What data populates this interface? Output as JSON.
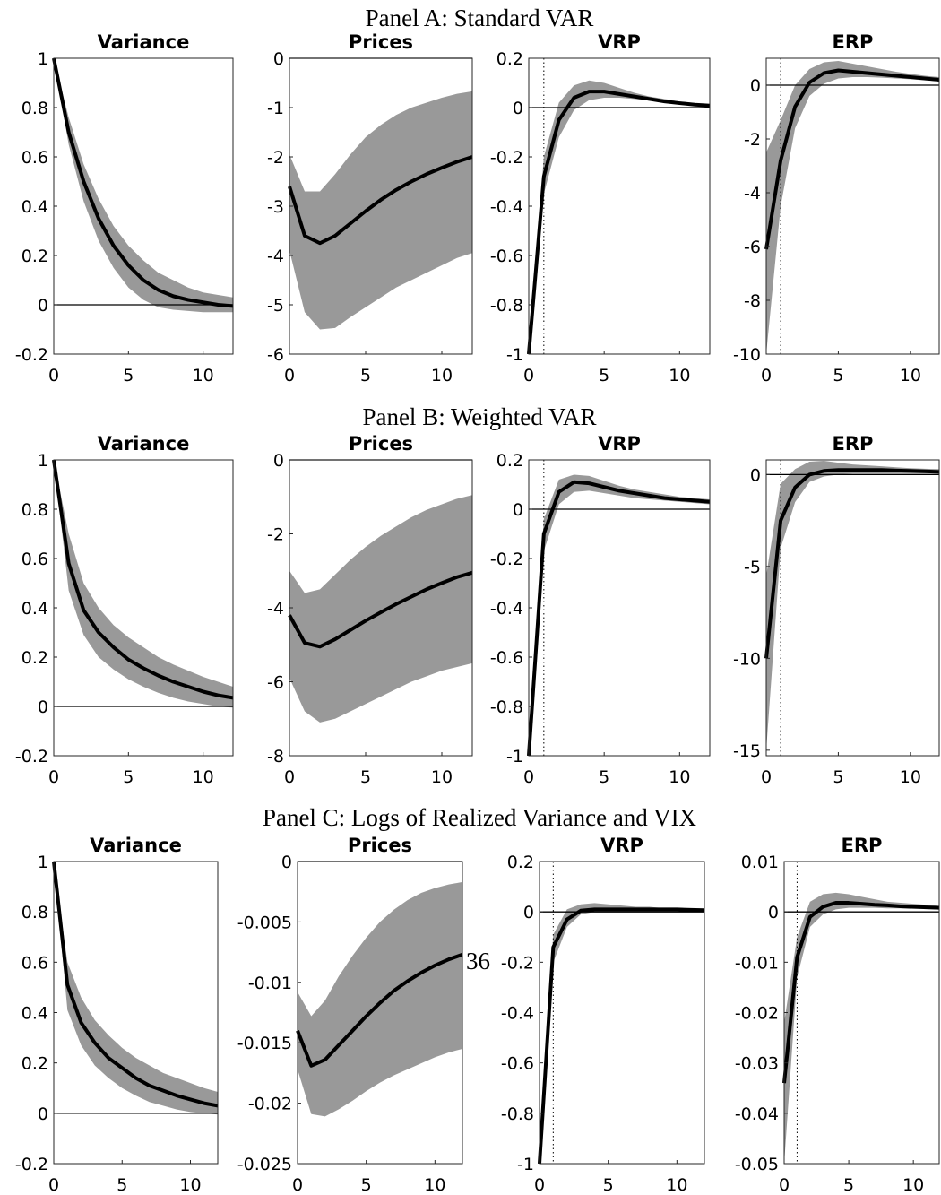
{
  "panels": [
    "Panel A: Standard VAR",
    "Panel B: Weighted VAR",
    "Panel C: Logs of Realized Variance and VIX"
  ],
  "page_number": "36",
  "chart_data": [
    {
      "type": "line",
      "title": "Variance",
      "x": [
        0,
        1,
        2,
        3,
        4,
        5,
        6,
        7,
        8,
        9,
        10,
        11,
        12
      ],
      "series": [
        {
          "color": "#000000",
          "values": [
            1,
            0.7,
            0.5,
            0.35,
            0.24,
            0.16,
            0.1,
            0.06,
            0.035,
            0.02,
            0.01,
            0.0,
            -0.005
          ]
        }
      ],
      "band": {
        "color": "#999999",
        "lower": [
          1,
          0.65,
          0.42,
          0.26,
          0.15,
          0.07,
          0.02,
          -0.01,
          -0.02,
          -0.025,
          -0.03,
          -0.03,
          -0.03
        ],
        "upper": [
          1,
          0.76,
          0.57,
          0.43,
          0.32,
          0.24,
          0.18,
          0.13,
          0.1,
          0.07,
          0.05,
          0.04,
          0.03
        ]
      },
      "xlim": [
        0,
        12
      ],
      "xticks": [
        0,
        5,
        10
      ],
      "ylim": [
        -0.2,
        1
      ],
      "yticks": [
        -0.2,
        0,
        0.2,
        0.4,
        0.6,
        0.8,
        1
      ],
      "hline": 0
    },
    {
      "type": "line",
      "title": "Prices",
      "x": [
        0,
        1,
        2,
        3,
        4,
        5,
        6,
        7,
        8,
        9,
        10,
        11,
        12
      ],
      "series": [
        {
          "color": "#000000",
          "values": [
            -2.6,
            -3.6,
            -3.75,
            -3.6,
            -3.35,
            -3.1,
            -2.87,
            -2.67,
            -2.5,
            -2.35,
            -2.22,
            -2.1,
            -2.0
          ]
        }
      ],
      "band": {
        "color": "#999999",
        "lower": [
          -3.9,
          -5.15,
          -5.5,
          -5.47,
          -5.25,
          -5.05,
          -4.85,
          -4.65,
          -4.5,
          -4.35,
          -4.2,
          -4.05,
          -3.95
        ],
        "upper": [
          -1.95,
          -2.7,
          -2.7,
          -2.35,
          -1.95,
          -1.6,
          -1.35,
          -1.15,
          -1.0,
          -0.9,
          -0.8,
          -0.72,
          -0.67
        ]
      },
      "xlim": [
        0,
        12
      ],
      "xticks": [
        0,
        5,
        10
      ],
      "ylim": [
        -6,
        0
      ],
      "yticks": [
        -6,
        -5,
        -4,
        -3,
        -2,
        -1,
        0
      ],
      "hline": 0
    },
    {
      "type": "line",
      "title": "VRP",
      "x": [
        0,
        1,
        2,
        3,
        4,
        5,
        6,
        7,
        8,
        9,
        10,
        11,
        12
      ],
      "series": [
        {
          "color": "#000000",
          "values": [
            -1,
            -0.28,
            -0.05,
            0.04,
            0.065,
            0.065,
            0.055,
            0.045,
            0.035,
            0.025,
            0.018,
            0.012,
            0.008
          ]
        }
      ],
      "band": {
        "color": "#999999",
        "lower": [
          -1,
          -0.35,
          -0.12,
          -0.01,
          0.03,
          0.04,
          0.04,
          0.035,
          0.028,
          0.02,
          0.014,
          0.008,
          0.004
        ],
        "upper": [
          -1,
          -0.2,
          0.02,
          0.09,
          0.11,
          0.1,
          0.08,
          0.06,
          0.045,
          0.035,
          0.025,
          0.018,
          0.013
        ]
      },
      "xlim": [
        0,
        12
      ],
      "xticks": [
        0,
        5,
        10
      ],
      "ylim": [
        -1,
        0.2
      ],
      "yticks": [
        -1,
        -0.8,
        -0.6,
        -0.4,
        -0.2,
        0,
        0.2
      ],
      "hline": 0,
      "vline": 1
    },
    {
      "type": "line",
      "title": "ERP",
      "x": [
        0,
        1,
        2,
        3,
        4,
        5,
        6,
        7,
        8,
        9,
        10,
        11,
        12
      ],
      "series": [
        {
          "color": "#000000",
          "values": [
            -6.1,
            -2.8,
            -0.8,
            0.1,
            0.45,
            0.55,
            0.5,
            0.45,
            0.4,
            0.35,
            0.3,
            0.25,
            0.2
          ]
        }
      ],
      "band": {
        "color": "#999999",
        "lower": [
          -10,
          -4.5,
          -1.6,
          -0.4,
          0.05,
          0.25,
          0.3,
          0.3,
          0.28,
          0.25,
          0.22,
          0.18,
          0.15
        ],
        "upper": [
          -2.5,
          -1.3,
          0,
          0.6,
          0.85,
          0.9,
          0.8,
          0.7,
          0.6,
          0.5,
          0.42,
          0.35,
          0.3
        ]
      },
      "xlim": [
        0,
        12
      ],
      "xticks": [
        0,
        5,
        10
      ],
      "ylim": [
        -10,
        1
      ],
      "yticks": [
        -10,
        -8,
        -6,
        -4,
        -2,
        0
      ],
      "hline": 0,
      "vline": 1
    },
    {
      "type": "line",
      "title": "Variance",
      "x": [
        0,
        1,
        2,
        3,
        4,
        5,
        6,
        7,
        8,
        9,
        10,
        11,
        12
      ],
      "series": [
        {
          "color": "#000000",
          "values": [
            1,
            0.58,
            0.39,
            0.3,
            0.24,
            0.19,
            0.155,
            0.125,
            0.1,
            0.08,
            0.06,
            0.045,
            0.035
          ]
        }
      ],
      "band": {
        "color": "#999999",
        "lower": [
          1,
          0.47,
          0.29,
          0.2,
          0.15,
          0.11,
          0.08,
          0.055,
          0.035,
          0.02,
          0.01,
          0,
          -0.005
        ],
        "upper": [
          1,
          0.7,
          0.5,
          0.4,
          0.33,
          0.28,
          0.24,
          0.2,
          0.17,
          0.145,
          0.12,
          0.1,
          0.08
        ]
      },
      "xlim": [
        0,
        12
      ],
      "xticks": [
        0,
        5,
        10
      ],
      "ylim": [
        -0.2,
        1
      ],
      "yticks": [
        -0.2,
        0,
        0.2,
        0.4,
        0.6,
        0.8,
        1
      ],
      "hline": 0
    },
    {
      "type": "line",
      "title": "Prices",
      "x": [
        0,
        1,
        2,
        3,
        4,
        5,
        6,
        7,
        8,
        9,
        10,
        11,
        12
      ],
      "series": [
        {
          "color": "#000000",
          "values": [
            -4.2,
            -4.95,
            -5.05,
            -4.85,
            -4.6,
            -4.35,
            -4.12,
            -3.9,
            -3.7,
            -3.5,
            -3.33,
            -3.17,
            -3.05
          ]
        }
      ],
      "band": {
        "color": "#999999",
        "lower": [
          -5.9,
          -6.8,
          -7.1,
          -7.0,
          -6.8,
          -6.6,
          -6.4,
          -6.2,
          -6.0,
          -5.85,
          -5.7,
          -5.6,
          -5.5
        ],
        "upper": [
          -3,
          -3.6,
          -3.5,
          -3.1,
          -2.7,
          -2.35,
          -2.05,
          -1.8,
          -1.55,
          -1.35,
          -1.2,
          -1.05,
          -0.95
        ]
      },
      "xlim": [
        0,
        12
      ],
      "xticks": [
        0,
        5,
        10
      ],
      "ylim": [
        -8,
        0
      ],
      "yticks": [
        -8,
        -6,
        -4,
        -2,
        0
      ],
      "hline": 0
    },
    {
      "type": "line",
      "title": "VRP",
      "x": [
        0,
        1,
        2,
        3,
        4,
        5,
        6,
        7,
        8,
        9,
        10,
        11,
        12
      ],
      "series": [
        {
          "color": "#000000",
          "values": [
            -1,
            -0.1,
            0.07,
            0.11,
            0.105,
            0.09,
            0.075,
            0.065,
            0.055,
            0.045,
            0.04,
            0.035,
            0.03
          ]
        }
      ],
      "band": {
        "color": "#999999",
        "lower": [
          -1,
          -0.17,
          0.02,
          0.07,
          0.075,
          0.065,
          0.055,
          0.045,
          0.04,
          0.035,
          0.03,
          0.025,
          0.02
        ],
        "upper": [
          -1,
          -0.04,
          0.12,
          0.14,
          0.135,
          0.115,
          0.095,
          0.08,
          0.07,
          0.06,
          0.05,
          0.045,
          0.04
        ]
      },
      "xlim": [
        0,
        12
      ],
      "xticks": [
        0,
        5,
        10
      ],
      "ylim": [
        -1,
        0.2
      ],
      "yticks": [
        -1,
        -0.8,
        -0.6,
        -0.4,
        -0.2,
        0,
        0.2
      ],
      "hline": 0,
      "vline": 1
    },
    {
      "type": "line",
      "title": "ERP",
      "x": [
        0,
        1,
        2,
        3,
        4,
        5,
        6,
        7,
        8,
        9,
        10,
        11,
        12
      ],
      "series": [
        {
          "color": "#000000",
          "values": [
            -10,
            -2.5,
            -0.7,
            0,
            0.2,
            0.25,
            0.25,
            0.25,
            0.25,
            0.22,
            0.2,
            0.18,
            0.15
          ]
        }
      ],
      "band": {
        "color": "#999999",
        "lower": [
          -15,
          -4,
          -1.5,
          -0.4,
          -0.1,
          0,
          0.05,
          0.05,
          0.05,
          0.05,
          0.05,
          0.05,
          0.05
        ],
        "upper": [
          -5.5,
          -0.5,
          0.3,
          0.7,
          0.75,
          0.65,
          0.55,
          0.5,
          0.45,
          0.4,
          0.35,
          0.32,
          0.3
        ]
      },
      "xlim": [
        0,
        12
      ],
      "xticks": [
        0,
        5,
        10
      ],
      "ylim": [
        -15.3,
        0.8
      ],
      "yticks": [
        -15,
        -10,
        -5,
        0
      ],
      "hline": 0,
      "vline": 1
    },
    {
      "type": "line",
      "title": "Variance",
      "x": [
        0,
        1,
        2,
        3,
        4,
        5,
        6,
        7,
        8,
        9,
        10,
        11,
        12
      ],
      "series": [
        {
          "color": "#000000",
          "values": [
            1,
            0.51,
            0.36,
            0.28,
            0.22,
            0.18,
            0.14,
            0.11,
            0.09,
            0.07,
            0.055,
            0.04,
            0.03
          ]
        }
      ],
      "band": {
        "color": "#999999",
        "lower": [
          1,
          0.41,
          0.27,
          0.19,
          0.14,
          0.1,
          0.07,
          0.045,
          0.03,
          0.015,
          0.005,
          0,
          -0.005
        ],
        "upper": [
          1,
          0.6,
          0.46,
          0.37,
          0.31,
          0.26,
          0.22,
          0.19,
          0.16,
          0.14,
          0.12,
          0.1,
          0.085
        ]
      },
      "xlim": [
        0,
        12
      ],
      "xticks": [
        0,
        5,
        10
      ],
      "ylim": [
        -0.2,
        1
      ],
      "yticks": [
        -0.2,
        0,
        0.2,
        0.4,
        0.6,
        0.8,
        1
      ],
      "hline": 0
    },
    {
      "type": "line",
      "title": "Prices",
      "x": [
        0,
        1,
        2,
        3,
        4,
        5,
        6,
        7,
        8,
        9,
        10,
        11,
        12
      ],
      "series": [
        {
          "color": "#000000",
          "values": [
            -0.014,
            -0.0169,
            -0.0164,
            -0.0152,
            -0.014,
            -0.0128,
            -0.0117,
            -0.0107,
            -0.0099,
            -0.0092,
            -0.0086,
            -0.0081,
            -0.0077
          ]
        }
      ],
      "band": {
        "color": "#999999",
        "lower": [
          -0.0172,
          -0.0209,
          -0.0211,
          -0.0205,
          -0.0198,
          -0.019,
          -0.0183,
          -0.0177,
          -0.0172,
          -0.0167,
          -0.0162,
          -0.0158,
          -0.0155
        ],
        "upper": [
          -0.0108,
          -0.0128,
          -0.0115,
          -0.0095,
          -0.0078,
          -0.0063,
          -0.005,
          -0.004,
          -0.0032,
          -0.0026,
          -0.0022,
          -0.0019,
          -0.0017
        ]
      },
      "xlim": [
        0,
        12
      ],
      "xticks": [
        0,
        5,
        10
      ],
      "ylim": [
        -0.025,
        0
      ],
      "yticks": [
        -0.025,
        -0.02,
        -0.015,
        -0.01,
        -0.005,
        0
      ],
      "hline": 0
    },
    {
      "type": "line",
      "title": "VRP",
      "x": [
        0,
        1,
        2,
        3,
        4,
        5,
        6,
        7,
        8,
        9,
        10,
        11,
        12
      ],
      "series": [
        {
          "color": "#000000",
          "values": [
            -1,
            -0.14,
            -0.03,
            0.005,
            0.01,
            0.01,
            0.01,
            0.01,
            0.01,
            0.01,
            0.01,
            0.008,
            0.007
          ]
        }
      ],
      "band": {
        "color": "#999999",
        "lower": [
          -1,
          -0.2,
          -0.06,
          -0.01,
          0,
          0,
          0,
          0,
          0,
          0,
          0,
          0,
          0
        ],
        "upper": [
          -1,
          -0.09,
          0.01,
          0.03,
          0.035,
          0.03,
          0.025,
          0.02,
          0.02,
          0.015,
          0.015,
          0.012,
          0.01
        ]
      },
      "xlim": [
        0,
        12
      ],
      "xticks": [
        0,
        5,
        10
      ],
      "ylim": [
        -1,
        0.2
      ],
      "yticks": [
        -1,
        -0.8,
        -0.6,
        -0.4,
        -0.2,
        0,
        0.2
      ],
      "hline": 0,
      "vline": 1
    },
    {
      "type": "line",
      "title": "ERP",
      "x": [
        0,
        1,
        2,
        3,
        4,
        5,
        6,
        7,
        8,
        9,
        10,
        11,
        12
      ],
      "series": [
        {
          "color": "#000000",
          "values": [
            -0.034,
            -0.009,
            -0.001,
            0.001,
            0.0018,
            0.0018,
            0.0016,
            0.0014,
            0.0013,
            0.0011,
            0.001,
            0.0009,
            0.0008
          ]
        }
      ],
      "band": {
        "color": "#999999",
        "lower": [
          -0.05,
          -0.013,
          -0.003,
          -0.0005,
          0.0005,
          0.0008,
          0.0008,
          0.0008,
          0.0007,
          0.0007,
          0.0006,
          0.0006,
          0.0005
        ],
        "upper": [
          -0.022,
          -0.005,
          0.002,
          0.0035,
          0.0038,
          0.0035,
          0.003,
          0.0025,
          0.002,
          0.0018,
          0.0016,
          0.0014,
          0.0012
        ]
      },
      "xlim": [
        0,
        12
      ],
      "xticks": [
        0,
        5,
        10
      ],
      "ylim": [
        -0.05,
        0.01
      ],
      "yticks": [
        -0.05,
        -0.04,
        -0.03,
        -0.02,
        -0.01,
        0,
        0.01
      ],
      "hline": 0,
      "vline": 1
    }
  ]
}
